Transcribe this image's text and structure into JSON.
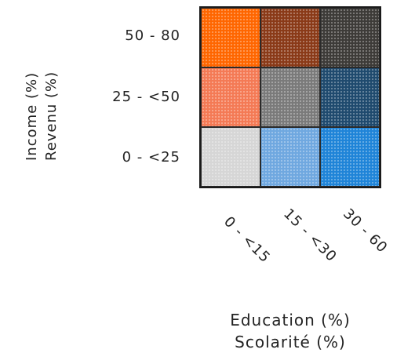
{
  "y_axis": {
    "label_en": "Income (%)",
    "label_fr": "Revenu (%)",
    "rows": [
      "50 - 80",
      "25 - <50",
      "0 - <25"
    ]
  },
  "x_axis": {
    "label_en": "Education (%)",
    "label_fr": "Scolarité (%)",
    "cols": [
      "0 - <15",
      "15 - <30",
      "30 - 60"
    ]
  },
  "matrix": [
    [
      "#ff6600",
      "#8a3a18",
      "#3d3b38"
    ],
    [
      "#f47a55",
      "#7a7a7a",
      "#1f4a6e"
    ],
    [
      "#d6d6d6",
      "#6fa8e0",
      "#1f84d8"
    ]
  ]
}
